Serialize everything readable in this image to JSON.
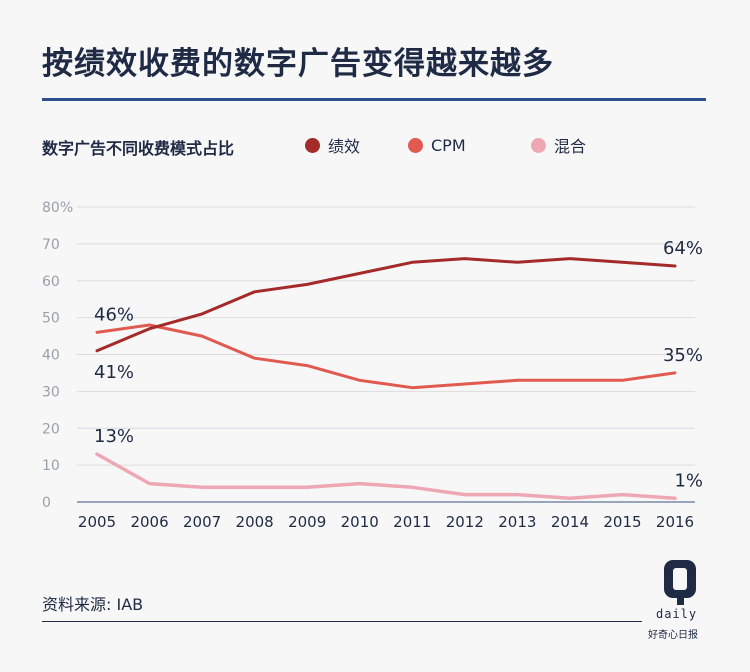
{
  "header": {
    "title": "按绩效收费的数字广告变得越来越多"
  },
  "footer": {
    "source": "资料来源: IAB"
  },
  "logo": {
    "mark": "Q",
    "word": "daily",
    "tagline": "好奇心日报"
  },
  "colors": {
    "performance": "#a52a2a",
    "cpm": "#e05a4f",
    "hybrid": "#eea8b4",
    "grid": "#dcdcdf",
    "axis": "#9aa0ab",
    "text": "#1f2a44"
  },
  "chart_data": {
    "type": "line",
    "title": "数字广告不同收费模式占比",
    "xlabel": "",
    "ylabel": "",
    "categories": [
      "2005",
      "2006",
      "2007",
      "2008",
      "2009",
      "2010",
      "2011",
      "2012",
      "2013",
      "2014",
      "2015",
      "2016"
    ],
    "ylim": [
      0,
      80
    ],
    "yticks": [
      "0",
      "10",
      "20",
      "30",
      "40",
      "50",
      "60",
      "70",
      "80%"
    ],
    "grid": true,
    "legend": "top",
    "series": [
      {
        "key": "performance",
        "name": "绩效",
        "values": [
          41,
          47,
          51,
          57,
          59,
          62,
          65,
          66,
          65,
          66,
          65,
          64
        ]
      },
      {
        "key": "cpm",
        "name": "CPM",
        "values": [
          46,
          48,
          45,
          39,
          37,
          33,
          31,
          32,
          33,
          33,
          33,
          35
        ]
      },
      {
        "key": "hybrid",
        "name": "混合",
        "values": [
          13,
          5,
          4,
          4,
          4,
          5,
          4,
          2,
          2,
          1,
          2,
          1
        ]
      }
    ],
    "annotations": [
      {
        "series": "cpm",
        "index": 0,
        "text": "46%",
        "position": "above"
      },
      {
        "series": "performance",
        "index": 0,
        "text": "41%",
        "position": "below"
      },
      {
        "series": "hybrid",
        "index": 0,
        "text": "13%",
        "position": "above"
      },
      {
        "series": "performance",
        "index": 11,
        "text": "64%",
        "position": "above"
      },
      {
        "series": "cpm",
        "index": 11,
        "text": "35%",
        "position": "above"
      },
      {
        "series": "hybrid",
        "index": 11,
        "text": "1%",
        "position": "above"
      }
    ]
  }
}
